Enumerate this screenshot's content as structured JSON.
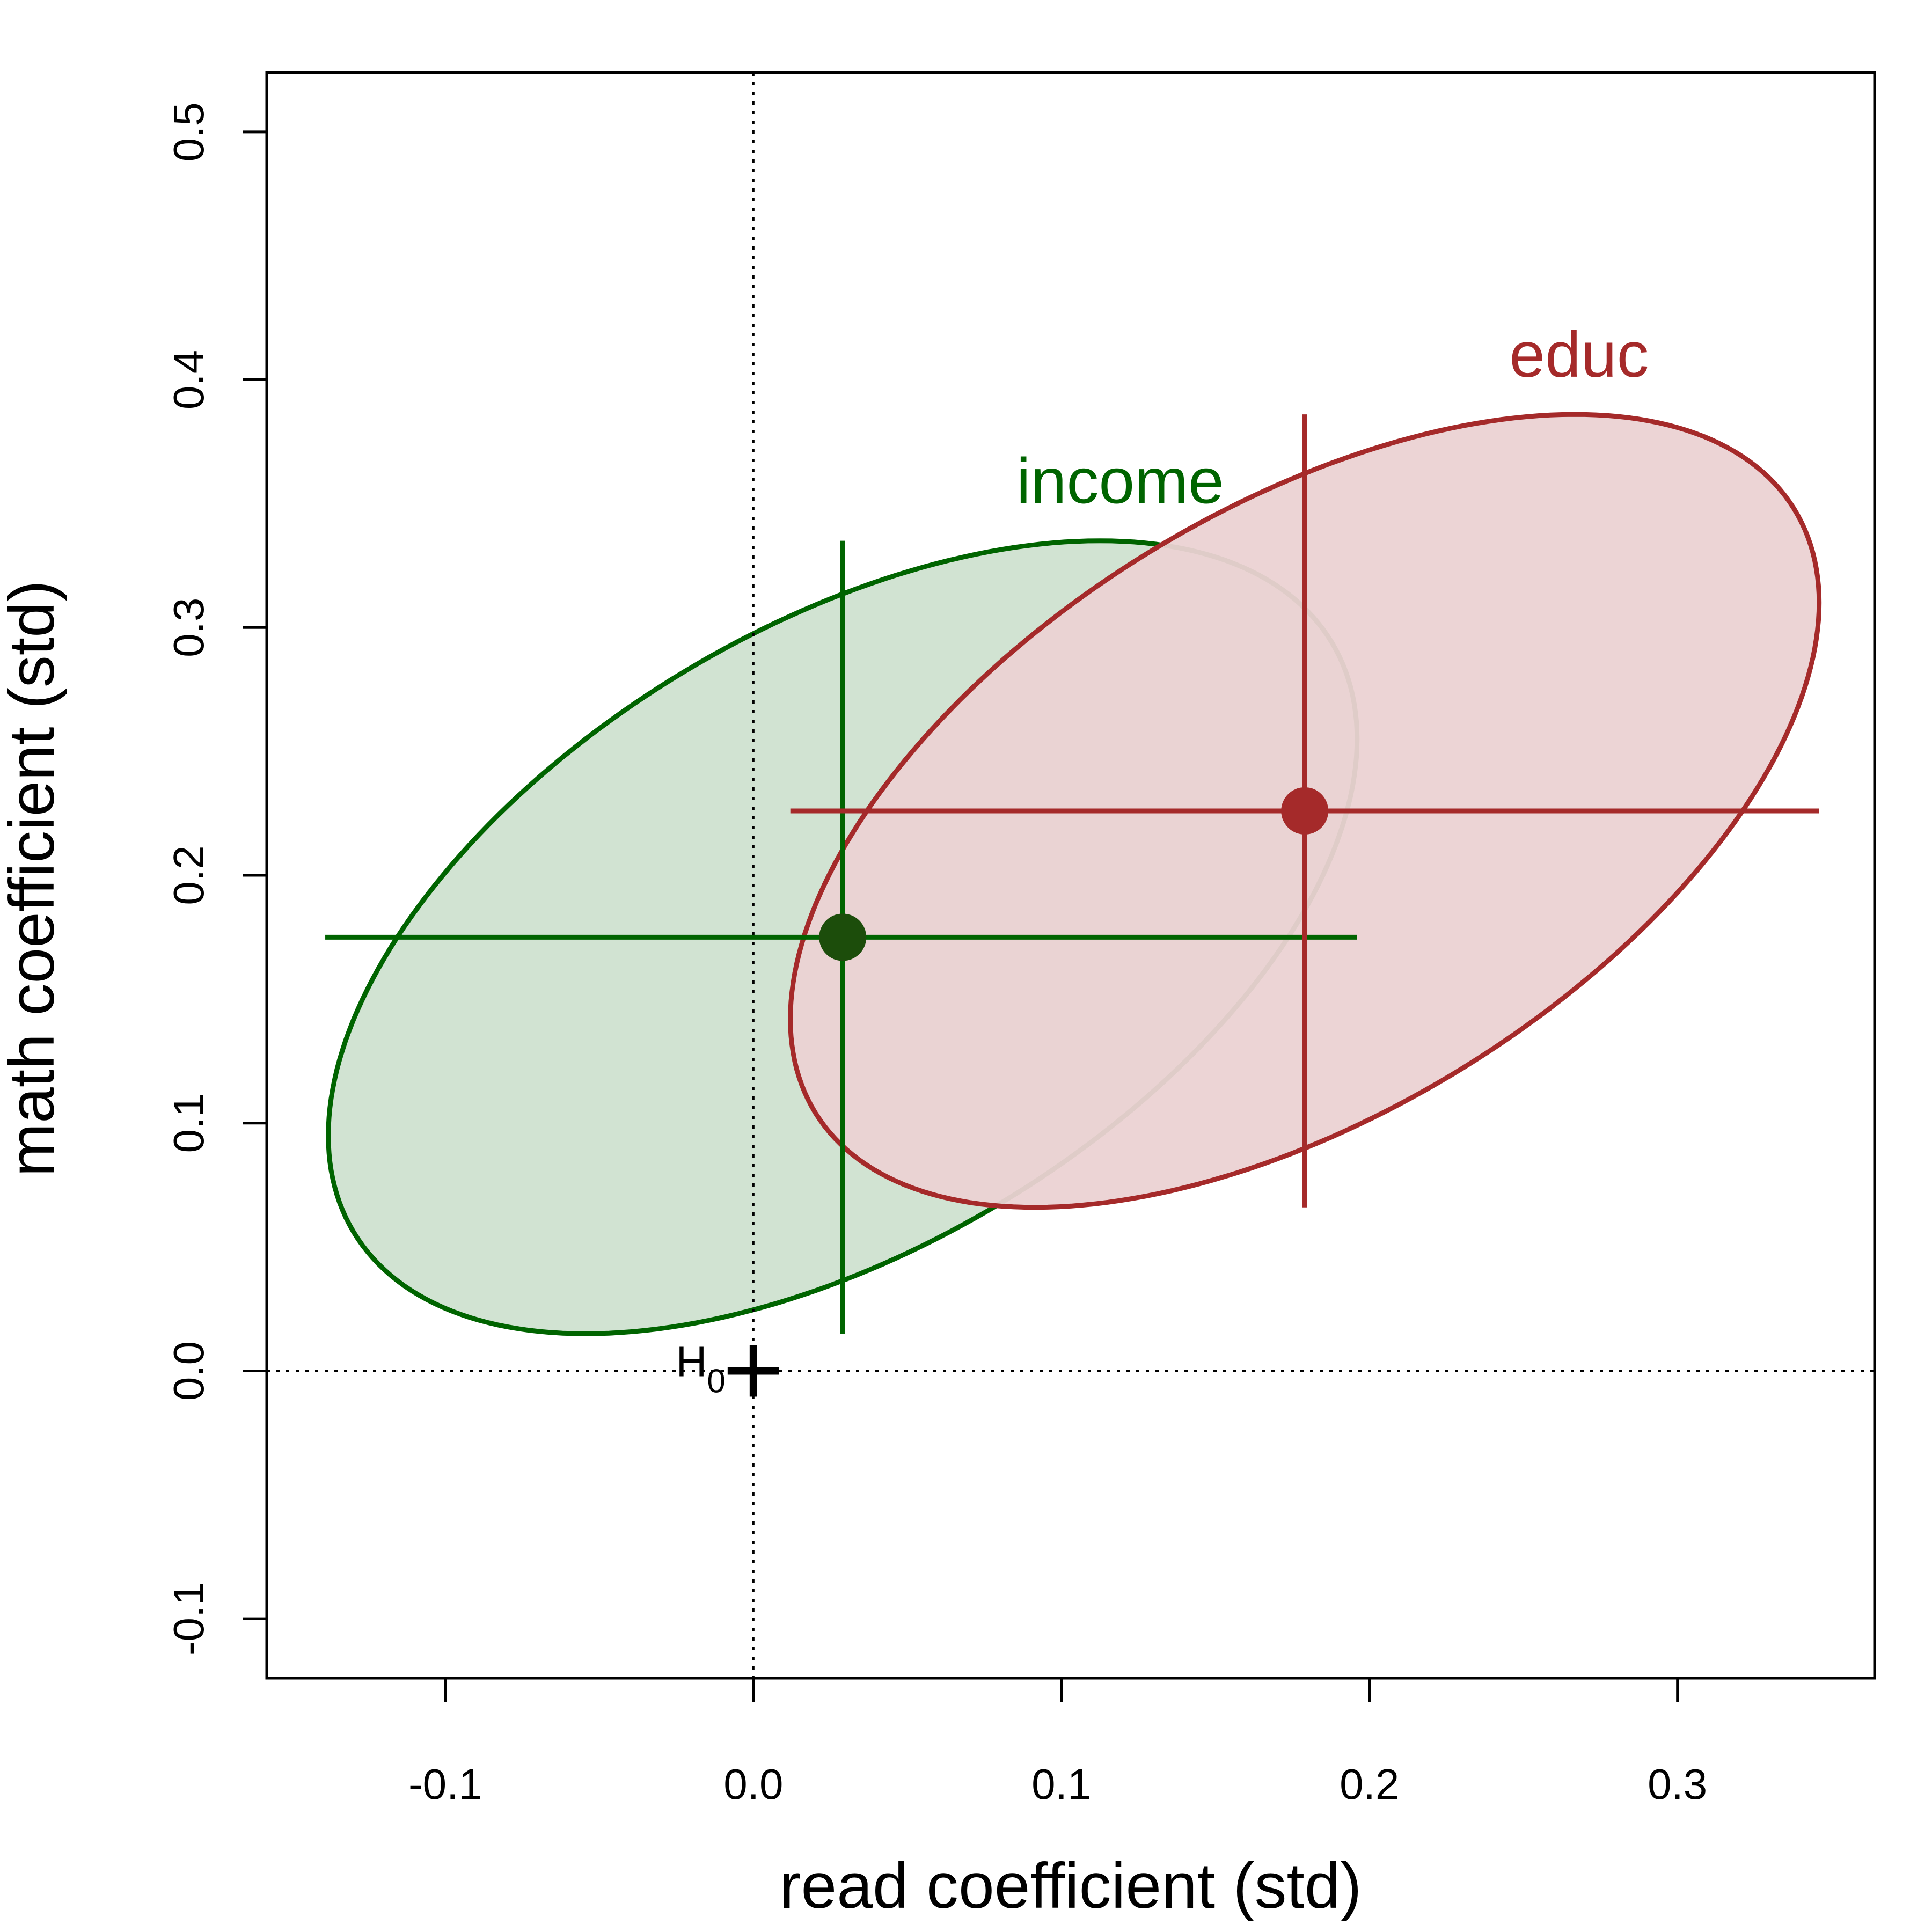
{
  "chart_data": {
    "type": "scatter",
    "title": "",
    "xlabel": "read coefficient (std)",
    "ylabel": "math coefficient (std)",
    "xlim": [
      -0.158,
      0.364
    ],
    "ylim": [
      -0.124,
      0.524
    ],
    "x_ticks": [
      -0.1,
      0.0,
      0.1,
      0.2,
      0.3
    ],
    "x_tick_labels": [
      "-0.1",
      "0.0",
      "0.1",
      "0.2",
      "0.3"
    ],
    "y_ticks": [
      -0.1,
      0.0,
      0.1,
      0.2,
      0.3,
      0.4,
      0.5
    ],
    "y_tick_labels": [
      "-0.1",
      "0.0",
      "0.1",
      "0.2",
      "0.3",
      "0.4",
      "0.5"
    ],
    "grid": false,
    "reference_lines": {
      "x": 0,
      "y": 0,
      "style": "dotted"
    },
    "null_hypothesis": {
      "label": "H",
      "subscript": "0",
      "x": 0,
      "y": 0
    },
    "series": [
      {
        "name": "income",
        "color": "#006400",
        "fill": "#cfe2d0",
        "point_color": "#1c4d0b",
        "estimate": [
          0.029,
          0.175
        ],
        "ci_x": [
          -0.139,
          0.196
        ],
        "ci_y": [
          0.015,
          0.335
        ],
        "ellipse": {
          "center": [
            0.029,
            0.175
          ],
          "leftmost": [
            -0.139,
            0.095
          ],
          "rightmost": [
            0.196,
            0.255
          ],
          "bottom": [
            -0.059,
            0.015
          ],
          "top": [
            0.117,
            0.335
          ]
        }
      },
      {
        "name": "educ",
        "color": "#a52a2a",
        "fill": "#ebd2d3",
        "point_color": "#a52a2a",
        "estimate": [
          0.179,
          0.226
        ],
        "ci_x": [
          0.012,
          0.346
        ],
        "ci_y": [
          0.066,
          0.386
        ],
        "ellipse": {
          "center": [
            0.179,
            0.226
          ],
          "leftmost": [
            0.012,
            0.142
          ],
          "rightmost": [
            0.346,
            0.31
          ],
          "bottom": [
            0.092,
            0.066
          ],
          "top": [
            0.266,
            0.386
          ]
        }
      }
    ]
  }
}
